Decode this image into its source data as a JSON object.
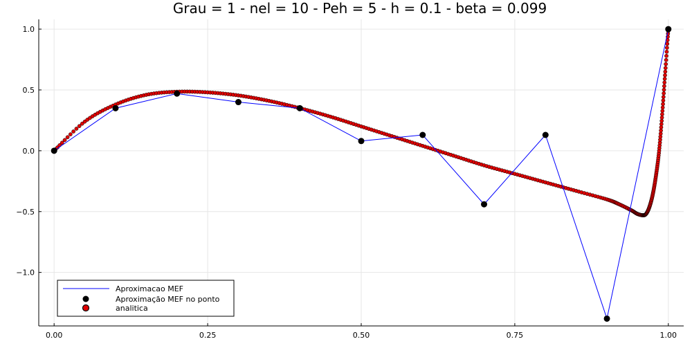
{
  "chart_data": {
    "type": "line",
    "title": "Grau = 1 - nel = 10 - Peh = 5 - h = 0.1 - beta = 0.099",
    "xlabel": "",
    "ylabel": "",
    "xlim": [
      -0.025,
      1.025
    ],
    "ylim": [
      -1.44,
      1.08
    ],
    "grid": true,
    "legend_position": "bottom-left",
    "x_ticks": [
      {
        "value": 0.0,
        "label": "0.00"
      },
      {
        "value": 0.25,
        "label": "0.25"
      },
      {
        "value": 0.5,
        "label": "0.50"
      },
      {
        "value": 0.75,
        "label": "0.75"
      },
      {
        "value": 1.0,
        "label": "1.00"
      }
    ],
    "y_ticks": [
      {
        "value": 1.0,
        "label": "1.0"
      },
      {
        "value": 0.5,
        "label": "0.5"
      },
      {
        "value": 0.0,
        "label": "0.0"
      },
      {
        "value": -0.5,
        "label": "−0.5"
      },
      {
        "value": -1.0,
        "label": "−1.0"
      }
    ],
    "series": [
      {
        "name": "Aproximacao MEF",
        "kind": "line",
        "color": "#0000ff",
        "x": [
          0.0,
          0.1,
          0.2,
          0.3,
          0.4,
          0.5,
          0.6,
          0.7,
          0.8,
          0.9,
          1.0
        ],
        "y": [
          0.0,
          0.35,
          0.47,
          0.4,
          0.35,
          0.08,
          0.13,
          -0.44,
          0.13,
          -1.38,
          1.0
        ]
      },
      {
        "name": "Aproximação MEF no ponto",
        "kind": "scatter",
        "color": "#000000",
        "x": [
          0.0,
          0.1,
          0.2,
          0.3,
          0.4,
          0.5,
          0.6,
          0.7,
          0.8,
          0.9,
          1.0
        ],
        "y": [
          0.0,
          0.35,
          0.47,
          0.4,
          0.35,
          0.08,
          0.13,
          -0.44,
          0.13,
          -1.38,
          1.0
        ]
      },
      {
        "name": "analitica",
        "kind": "scatter",
        "color": "#e00000",
        "x": [
          0.0,
          0.05,
          0.1,
          0.15,
          0.2,
          0.25,
          0.3,
          0.35,
          0.4,
          0.45,
          0.5,
          0.55,
          0.6,
          0.65,
          0.7,
          0.75,
          0.8,
          0.85,
          0.9,
          0.92,
          0.94,
          0.95,
          0.96,
          0.965,
          0.97,
          0.975,
          0.98,
          0.985,
          0.99,
          0.995,
          1.0
        ],
        "y": [
          0.0,
          0.24,
          0.38,
          0.46,
          0.485,
          0.48,
          0.455,
          0.41,
          0.35,
          0.28,
          0.2,
          0.12,
          0.04,
          -0.04,
          -0.12,
          -0.19,
          -0.26,
          -0.33,
          -0.4,
          -0.44,
          -0.49,
          -0.52,
          -0.53,
          -0.51,
          -0.45,
          -0.35,
          -0.2,
          0.0,
          0.3,
          0.65,
          1.0
        ]
      }
    ]
  }
}
